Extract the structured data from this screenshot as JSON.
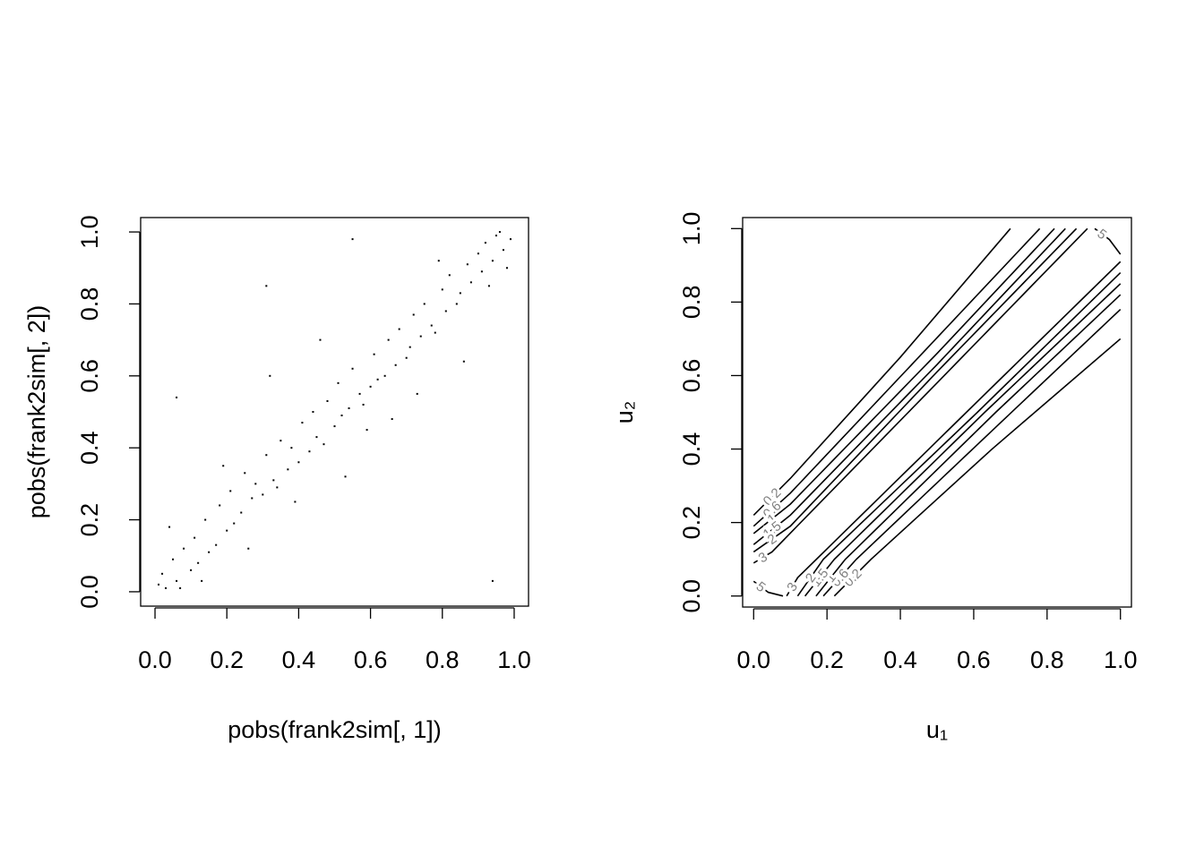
{
  "chart_data": [
    {
      "type": "scatter",
      "xlabel": "pobs(frank2sim[, 1])",
      "ylabel": "pobs(frank2sim[, 2])",
      "xlim": [
        -0.04,
        1.04
      ],
      "ylim": [
        -0.04,
        1.04
      ],
      "xticks": [
        {
          "value": 0,
          "label": "0.0"
        },
        0.2,
        0.4,
        0.6,
        0.8,
        {
          "value": 1,
          "label": "1.0"
        }
      ],
      "yticks": [
        {
          "value": 0,
          "label": "0.0"
        },
        0.2,
        0.4,
        0.6,
        0.8,
        {
          "value": 1,
          "label": "1.0"
        }
      ],
      "color": "#000000",
      "x": [
        0.02,
        0.03,
        0.05,
        0.06,
        0.08,
        0.1,
        0.11,
        0.12,
        0.14,
        0.15,
        0.17,
        0.18,
        0.2,
        0.21,
        0.22,
        0.24,
        0.25,
        0.27,
        0.28,
        0.3,
        0.31,
        0.33,
        0.34,
        0.35,
        0.37,
        0.38,
        0.4,
        0.41,
        0.43,
        0.44,
        0.45,
        0.47,
        0.48,
        0.5,
        0.51,
        0.52,
        0.54,
        0.55,
        0.57,
        0.58,
        0.6,
        0.61,
        0.62,
        0.64,
        0.65,
        0.67,
        0.68,
        0.7,
        0.71,
        0.72,
        0.74,
        0.75,
        0.77,
        0.78,
        0.8,
        0.81,
        0.82,
        0.84,
        0.85,
        0.87,
        0.88,
        0.9,
        0.91,
        0.92,
        0.94,
        0.95,
        0.97,
        0.98,
        0.99,
        0.01,
        0.04,
        0.07,
        0.13,
        0.19,
        0.26,
        0.32,
        0.39,
        0.46,
        0.53,
        0.59,
        0.66,
        0.73,
        0.79,
        0.86,
        0.93,
        0.96,
        0.06,
        0.31,
        0.94,
        0.55
      ],
      "y": [
        0.05,
        0.01,
        0.09,
        0.03,
        0.12,
        0.06,
        0.15,
        0.08,
        0.2,
        0.11,
        0.13,
        0.24,
        0.17,
        0.28,
        0.19,
        0.22,
        0.33,
        0.26,
        0.3,
        0.27,
        0.38,
        0.31,
        0.29,
        0.42,
        0.34,
        0.4,
        0.36,
        0.47,
        0.39,
        0.5,
        0.43,
        0.41,
        0.53,
        0.46,
        0.58,
        0.49,
        0.51,
        0.62,
        0.55,
        0.52,
        0.57,
        0.66,
        0.59,
        0.6,
        0.7,
        0.63,
        0.73,
        0.65,
        0.68,
        0.77,
        0.71,
        0.8,
        0.74,
        0.72,
        0.84,
        0.78,
        0.88,
        0.8,
        0.83,
        0.91,
        0.86,
        0.94,
        0.89,
        0.97,
        0.92,
        0.99,
        0.95,
        0.9,
        0.98,
        0.02,
        0.18,
        0.01,
        0.03,
        0.35,
        0.12,
        0.6,
        0.25,
        0.7,
        0.32,
        0.45,
        0.48,
        0.55,
        0.92,
        0.64,
        0.85,
        1.0,
        0.54,
        0.85,
        0.03,
        0.98
      ]
    },
    {
      "type": "contour",
      "xlabel": "u₁",
      "ylabel": "u₂",
      "xlim": [
        -0.03,
        1.03
      ],
      "ylim": [
        -0.03,
        1.03
      ],
      "xticks": [
        {
          "value": 0,
          "label": "0.0"
        },
        0.2,
        0.4,
        0.6,
        0.8,
        {
          "value": 1,
          "label": "1.0"
        }
      ],
      "yticks": [
        {
          "value": 0,
          "label": "0.0"
        },
        0.2,
        0.4,
        0.6,
        0.8,
        {
          "value": 1,
          "label": "1.0"
        }
      ],
      "color": "#000000",
      "label_color": "#808080",
      "contours": [
        {
          "level": 0.2,
          "x": [
            0,
            0.1,
            0.4,
            0.7
          ],
          "y": [
            0.22,
            0.32,
            0.65,
            1.0
          ]
        },
        {
          "level": 0.6,
          "x": [
            0,
            0.1,
            0.45,
            0.78
          ],
          "y": [
            0.19,
            0.28,
            0.65,
            1.0
          ]
        },
        {
          "level": 1,
          "x": [
            0,
            0.1,
            0.5,
            0.82
          ],
          "y": [
            0.17,
            0.25,
            0.66,
            1.0
          ]
        },
        {
          "level": 1.5,
          "x": [
            0,
            0.1,
            0.5,
            0.85
          ],
          "y": [
            0.14,
            0.22,
            0.63,
            1.0
          ]
        },
        {
          "level": 2,
          "x": [
            0,
            0.1,
            0.5,
            0.88
          ],
          "y": [
            0.12,
            0.19,
            0.61,
            1.0
          ]
        },
        {
          "level": 3,
          "x": [
            0,
            0.05,
            0.5,
            0.91
          ],
          "y": [
            0.09,
            0.12,
            0.58,
            1.0
          ]
        },
        {
          "level": 5,
          "x": [
            0,
            0.04,
            0.08
          ],
          "y": [
            0.04,
            0.01,
            0.0
          ]
        },
        {
          "level": 0.2,
          "x": [
            0.22,
            0.32,
            0.65,
            1.0
          ],
          "y": [
            0,
            0.1,
            0.4,
            0.7
          ]
        },
        {
          "level": 0.6,
          "x": [
            0.19,
            0.28,
            0.65,
            1.0
          ],
          "y": [
            0,
            0.1,
            0.45,
            0.78
          ]
        },
        {
          "level": 1,
          "x": [
            0.17,
            0.25,
            0.66,
            1.0
          ],
          "y": [
            0,
            0.1,
            0.5,
            0.82
          ]
        },
        {
          "level": 1.5,
          "x": [
            0.14,
            0.22,
            0.63,
            1.0
          ],
          "y": [
            0,
            0.1,
            0.5,
            0.85
          ]
        },
        {
          "level": 2,
          "x": [
            0.12,
            0.19,
            0.61,
            1.0
          ],
          "y": [
            0,
            0.1,
            0.5,
            0.88
          ]
        },
        {
          "level": 3,
          "x": [
            0.09,
            0.12,
            0.58,
            1.0
          ],
          "y": [
            0,
            0.05,
            0.5,
            0.91
          ]
        },
        {
          "level": 5,
          "x": [
            0.93,
            0.97,
            1.0
          ],
          "y": [
            1.0,
            0.97,
            0.93
          ]
        }
      ]
    }
  ]
}
